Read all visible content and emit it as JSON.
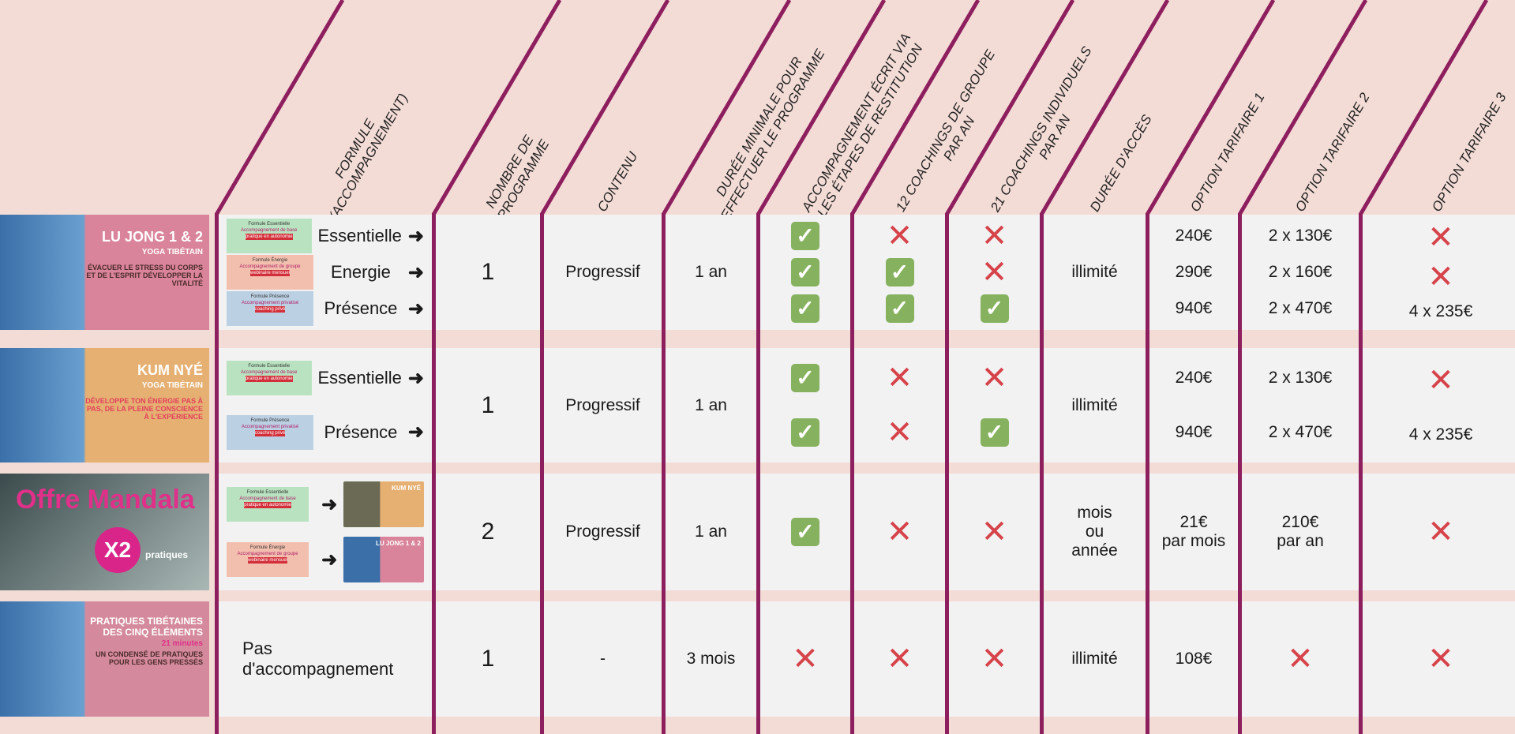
{
  "headers": [
    "FORMULE\n(ACCOMPAGNEMENT)",
    "NOMBRE DE\nPROGRAMME",
    "CONTENU",
    "DURÉE MINIMALE POUR\nEFFECTUER LE PROGRAMME",
    "ACCOMPAGNEMENT ÉCRIT VIA\nLES ÉTAPES DE RESTITUTION",
    "12 COACHINGS DE GROUPE\nPAR AN",
    "21 COACHINGS INDIVIDUELS\nPAR AN",
    "DURÉE D'ACCÈS",
    "OPTION TARIFAIRE 1",
    "OPTION TARIFAIRE 2",
    "OPTION TARIFAIRE 3"
  ],
  "colors": {
    "line": "#8e1f5f",
    "bg": "#f4dcd6",
    "cell": "#f2f2f2",
    "check": "#86b25f",
    "cross": "#d6434a"
  },
  "cards": {
    "essentielle": {
      "title": "Formule Essentielle",
      "sub": "Accompagnement de base",
      "tag": "pratique en autonomie"
    },
    "energie": {
      "title": "Formule Énergie",
      "sub": "Accompagnement de groupe",
      "tag": "webinaire mensuel"
    },
    "presence": {
      "title": "Formule Présence",
      "sub": "Accompagnement privatisé",
      "tag": "coaching privé"
    }
  },
  "rows": [
    {
      "thumb": {
        "title": "LU JONG 1 & 2",
        "sub": "YOGA TIBÉTAIN",
        "desc": "ÉVACUER LE STRESS DU CORPS ET DE L'ESPRIT DÉVELOPPER LA VITALITÉ",
        "bg": "#d9849a"
      },
      "formule": {
        "type": "list",
        "items": [
          {
            "card": "essentielle",
            "label": "Essentielle"
          },
          {
            "card": "energie",
            "label": "Energie"
          },
          {
            "card": "presence",
            "label": "Présence"
          }
        ]
      },
      "cols": [
        [
          "1"
        ],
        [
          "Progressif"
        ],
        [
          "1 an"
        ],
        [
          "check",
          "check",
          "check"
        ],
        [
          "cross",
          "check",
          "check"
        ],
        [
          "cross",
          "cross",
          "check"
        ],
        [
          "illimité"
        ],
        [
          "240€",
          "290€",
          "940€"
        ],
        [
          "2 x 130€",
          "2 x 160€",
          "2 x 470€"
        ],
        [
          "cross",
          "cross",
          "4 x  235€"
        ]
      ]
    },
    {
      "thumb": {
        "title": "KUM NYÉ",
        "sub": "YOGA TIBÉTAIN",
        "desc": "DÉVELOPPE TON ÉNERGIE PAS À PAS, DE LA PLEINE CONSCIENCE À L'EXPÉRIENCE",
        "bg": "#e6b072"
      },
      "formule": {
        "type": "list",
        "items": [
          {
            "card": "essentielle",
            "label": "Essentielle"
          },
          {
            "card": "presence",
            "label": "Présence"
          }
        ]
      },
      "cols": [
        [
          "1"
        ],
        [
          "Progressif"
        ],
        [
          "1 an"
        ],
        [
          "check",
          "check"
        ],
        [
          "cross",
          "cross"
        ],
        [
          "cross",
          "check"
        ],
        [
          "illimité"
        ],
        [
          "240€",
          "940€"
        ],
        [
          "2 x 130€",
          "2 x 470€"
        ],
        [
          "cross",
          "4 x  235€"
        ]
      ]
    },
    {
      "thumb": {
        "title": "Offre Mandala",
        "sub": "X2",
        "desc": "pratiques",
        "bg": "#6f7f80"
      },
      "formule": {
        "type": "combo",
        "items": [
          {
            "card": "essentielle",
            "target": "KUM NYÉ"
          },
          {
            "card": "energie",
            "target": "LU JONG 1 & 2"
          }
        ]
      },
      "cols": [
        [
          "2"
        ],
        [
          "Progressif"
        ],
        [
          "1 an"
        ],
        [
          "check"
        ],
        [
          "cross"
        ],
        [
          "cross"
        ],
        [
          "mois\nou\nannée"
        ],
        [
          "21€\npar mois"
        ],
        [
          "210€\npar an"
        ],
        [
          "cross"
        ]
      ]
    },
    {
      "thumb": {
        "title": "PRATIQUES TIBÉTAINES DES CINQ ÉLÉMENTS",
        "sub": "21 minutes",
        "desc": "UN CONDENSÉ DE PRATIQUES POUR LES GENS PRESSÉS",
        "bg": "#d48a9c"
      },
      "formule": {
        "type": "text",
        "text": "Pas\nd'accompagnement"
      },
      "cols": [
        [
          "1"
        ],
        [
          "-"
        ],
        [
          "3 mois"
        ],
        [
          "cross"
        ],
        [
          "cross"
        ],
        [
          "cross"
        ],
        [
          "illimité"
        ],
        [
          "108€"
        ],
        [
          "cross"
        ],
        [
          "cross"
        ]
      ]
    }
  ]
}
